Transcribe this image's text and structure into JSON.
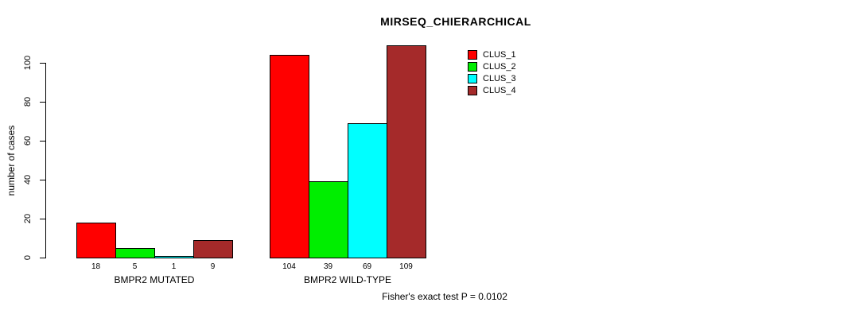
{
  "chart_data": {
    "type": "bar",
    "title": "MIRSEQ_CHIERARCHICAL",
    "ylabel": "number of cases",
    "xlabel": "",
    "footer": "Fisher's exact test P = 0.0102",
    "yticks": [
      0,
      20,
      40,
      60,
      80,
      100
    ],
    "ylim": [
      0,
      109
    ],
    "grid": false,
    "legend_position": "top-right",
    "categories": [
      "BMPR2 MUTATED",
      "BMPR2 WILD-TYPE"
    ],
    "series": [
      {
        "name": "CLUS_1",
        "color": "#ff0000",
        "values": [
          18,
          104
        ]
      },
      {
        "name": "CLUS_2",
        "color": "#00ee00",
        "values": [
          5,
          39
        ]
      },
      {
        "name": "CLUS_3",
        "color": "#00ffff",
        "values": [
          1,
          69
        ]
      },
      {
        "name": "CLUS_4",
        "color": "#a52a2a",
        "values": [
          9,
          109
        ]
      }
    ],
    "bar_value_labels": {
      "BMPR2 MUTATED": [
        18,
        5,
        1,
        9
      ],
      "BMPR2 WILD-TYPE": [
        104,
        39,
        69,
        109
      ]
    }
  }
}
